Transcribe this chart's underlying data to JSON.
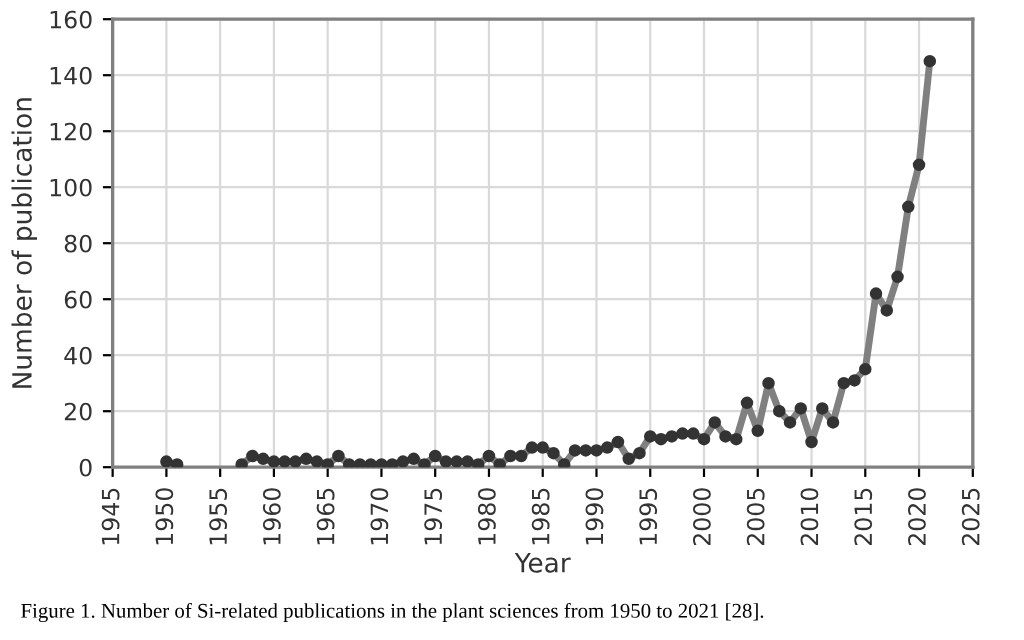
{
  "chart_data": {
    "type": "line",
    "xlabel": "Year",
    "ylabel": "Number of publication",
    "annotations": [
      "Figure 1. Number of Si-related publications in the plant sciences from 1950 to 2021 [28]."
    ],
    "x": [
      1950,
      1951,
      1952,
      1953,
      1954,
      1955,
      1956,
      1957,
      1958,
      1959,
      1960,
      1961,
      1962,
      1963,
      1964,
      1965,
      1966,
      1967,
      1968,
      1969,
      1970,
      1971,
      1972,
      1973,
      1974,
      1975,
      1976,
      1977,
      1978,
      1979,
      1980,
      1981,
      1982,
      1983,
      1984,
      1985,
      1986,
      1987,
      1988,
      1989,
      1990,
      1991,
      1992,
      1993,
      1994,
      1995,
      1996,
      1997,
      1998,
      1999,
      2000,
      2001,
      2002,
      2003,
      2004,
      2005,
      2006,
      2007,
      2008,
      2009,
      2010,
      2011,
      2012,
      2013,
      2014,
      2015,
      2016,
      2017,
      2018,
      2019,
      2020,
      2021
    ],
    "series": [
      {
        "color": "#808080",
        "values": [
          2,
          1,
          null,
          null,
          null,
          null,
          null,
          1,
          4,
          3,
          2,
          2,
          2,
          3,
          2,
          1,
          4,
          1,
          1,
          1,
          1,
          1,
          2,
          3,
          1,
          4,
          2,
          2,
          2,
          1,
          4,
          1,
          4,
          4,
          7,
          7,
          5,
          1,
          6,
          6,
          6,
          7,
          9,
          3,
          5,
          11,
          10,
          11,
          12,
          12,
          10,
          16,
          11,
          10,
          23,
          13,
          30,
          20,
          16,
          21,
          9,
          21,
          16,
          30,
          31,
          35,
          62,
          56,
          68,
          93,
          108,
          145
        ]
      }
    ],
    "marker": "circle",
    "line_style": "solid",
    "grid": true,
    "xlim": [
      1945,
      2025
    ],
    "xticks": [
      1945,
      1950,
      1955,
      1960,
      1965,
      1970,
      1975,
      1980,
      1985,
      1990,
      1995,
      2000,
      2005,
      2010,
      2015,
      2020,
      2025
    ],
    "ylim": [
      0,
      160
    ],
    "yticks": [
      0,
      20,
      40,
      60,
      80,
      100,
      120,
      140,
      160
    ]
  }
}
